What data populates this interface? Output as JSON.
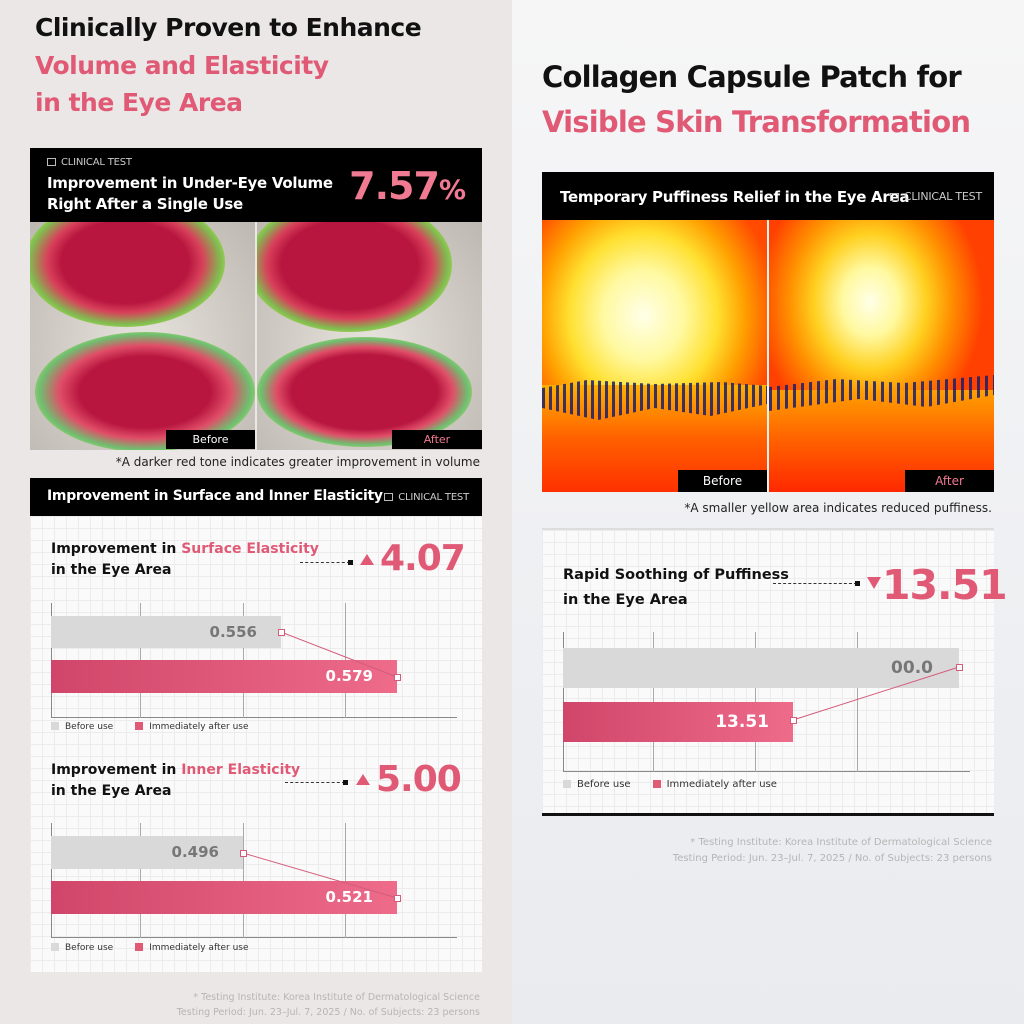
{
  "left": {
    "headline": [
      "Clinically Proven to Enhance",
      "Volume and Elasticity",
      "in the Eye Area"
    ],
    "volume_box": {
      "badge": "CLINICAL TEST",
      "title_lines": [
        "Improvement in Under-Eye Volume",
        "Right After a Single Use"
      ],
      "value": "7.57",
      "unit": "%"
    },
    "image_labels": {
      "before": "Before",
      "after": "After"
    },
    "image_caption": "*A darker red tone indicates greater improvement in volume",
    "elasticity_header": {
      "title": "Improvement in Surface and Inner Elasticity",
      "badge": "CLINICAL TEST"
    },
    "footer": [
      "* Testing Institute: Korea Institute of Dermatological Science",
      "Testing Period: Jun. 23–Jul. 7, 2025 / No. of Subjects: 23 persons"
    ]
  },
  "right": {
    "headline": [
      "Collagen Capsule Patch for",
      "Visible Skin Transformation"
    ],
    "puffiness_header": {
      "title": "Temporary Puffiness Relief in the Eye Area",
      "badge": "CLINICAL TEST"
    },
    "image_labels": {
      "before": "Before",
      "after": "After"
    },
    "image_caption": "*A smaller yellow area indicates reduced puffiness.",
    "footer": [
      "* Testing Institute: Korea Institute of Dermatological Science",
      "Testing Period: Jun. 23–Jul. 7, 2025 / No. of Subjects: 23 persons"
    ]
  },
  "colors": {
    "accent": "#e05a76",
    "before_bar": "#d9d9d9",
    "after_bar": "#e05a76"
  },
  "chart_data": [
    {
      "type": "bar",
      "title_prefix": "Improvement in ",
      "title_highlight": "Surface Elasticity",
      "title_line2": "in the Eye Area",
      "change": "4.07",
      "direction": "up",
      "series": [
        {
          "name": "Before use",
          "values": [
            0.556
          ]
        },
        {
          "name": "Immediately after use",
          "values": [
            0.579
          ]
        }
      ],
      "value_labels": [
        "0.556",
        "0.579"
      ],
      "legend": [
        "Before use",
        "Immediately after use"
      ],
      "legend_position": "bottom-left",
      "orientation": "horizontal",
      "grid": true
    },
    {
      "type": "bar",
      "title_prefix": "Improvement in ",
      "title_highlight": "Inner Elasticity",
      "title_line2": "in the Eye Area",
      "change": "5.00",
      "direction": "up",
      "series": [
        {
          "name": "Before use",
          "values": [
            0.496
          ]
        },
        {
          "name": "Immediately after use",
          "values": [
            0.521
          ]
        }
      ],
      "value_labels": [
        "0.496",
        "0.521"
      ],
      "legend": [
        "Before use",
        "Immediately after use"
      ],
      "legend_position": "bottom-left",
      "orientation": "horizontal",
      "grid": true
    },
    {
      "type": "bar",
      "title_line1": "Rapid Soothing of Puffiness",
      "title_line2": "in the Eye Area",
      "change": "13.51",
      "direction": "down",
      "series": [
        {
          "name": "Before use",
          "values": [
            0.0
          ]
        },
        {
          "name": "Immediately after use",
          "values": [
            13.51
          ]
        }
      ],
      "value_labels": [
        "00.0",
        "13.51"
      ],
      "legend": [
        "Before use",
        "Immediately after use"
      ],
      "legend_position": "bottom-left",
      "orientation": "horizontal",
      "grid": true
    }
  ]
}
